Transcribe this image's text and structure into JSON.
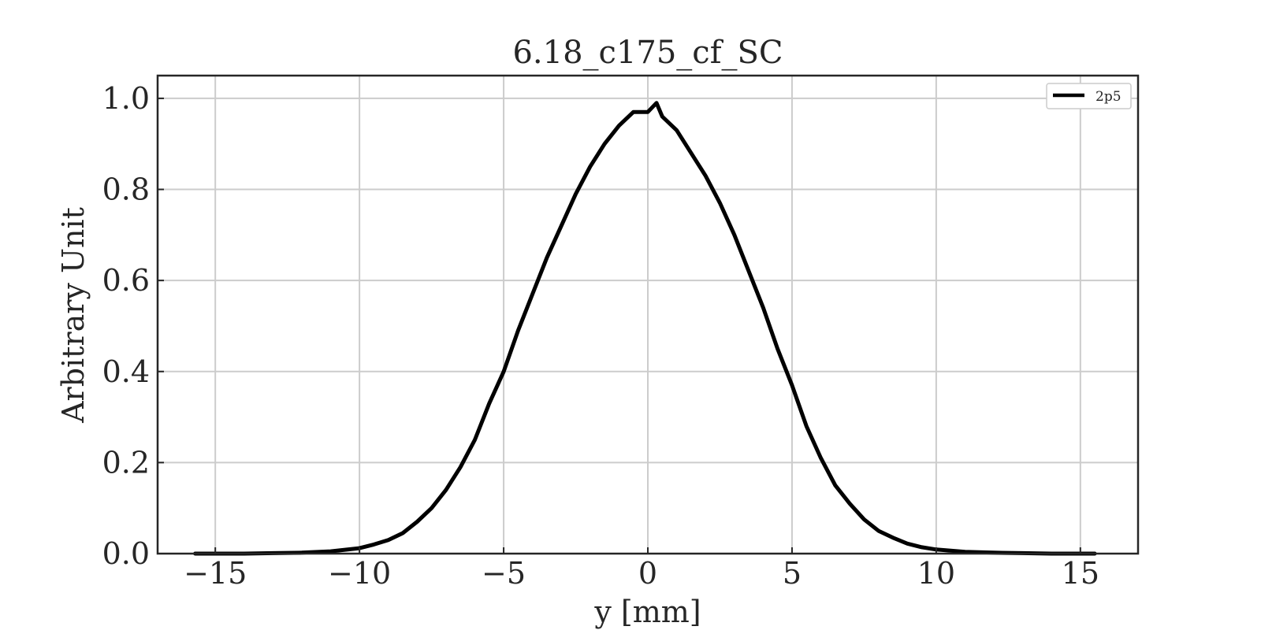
{
  "chart_data": {
    "type": "line",
    "title": "6.18_c175_cf_SC",
    "xlabel": "y [mm]",
    "ylabel": "Arbitrary Unit",
    "xlim": [
      -17,
      17
    ],
    "ylim": [
      0,
      1.05
    ],
    "xticks": [
      -15,
      -10,
      -5,
      0,
      5,
      10,
      15
    ],
    "xtick_labels": [
      "−15",
      "−10",
      "−5",
      "0",
      "5",
      "10",
      "15"
    ],
    "yticks": [
      0.0,
      0.2,
      0.4,
      0.6,
      0.8,
      1.0
    ],
    "ytick_labels": [
      "0.0",
      "0.2",
      "0.4",
      "0.6",
      "0.8",
      "1.0"
    ],
    "grid": true,
    "legend_position": "top-right",
    "series": [
      {
        "name": "2p5",
        "color": "#000000",
        "x": [
          -15.7,
          -15,
          -14,
          -13,
          -12,
          -11,
          -10,
          -9.5,
          -9,
          -8.5,
          -8,
          -7.5,
          -7,
          -6.5,
          -6,
          -5.5,
          -5,
          -4.5,
          -4,
          -3.5,
          -3,
          -2.5,
          -2,
          -1.5,
          -1,
          -0.5,
          0,
          0.3,
          0.5,
          1,
          1.5,
          2,
          2.5,
          3,
          3.5,
          4,
          4.5,
          5,
          5.5,
          6,
          6.5,
          7,
          7.5,
          8,
          8.5,
          9,
          9.5,
          10,
          11,
          12,
          13,
          14,
          15,
          15.5
        ],
        "y": [
          0.0,
          0.0,
          0.0,
          0.001,
          0.002,
          0.005,
          0.012,
          0.02,
          0.03,
          0.045,
          0.07,
          0.1,
          0.14,
          0.19,
          0.25,
          0.33,
          0.4,
          0.49,
          0.57,
          0.65,
          0.72,
          0.79,
          0.85,
          0.9,
          0.94,
          0.97,
          0.97,
          0.99,
          0.96,
          0.93,
          0.88,
          0.83,
          0.77,
          0.7,
          0.62,
          0.54,
          0.45,
          0.37,
          0.28,
          0.21,
          0.15,
          0.11,
          0.075,
          0.05,
          0.035,
          0.022,
          0.014,
          0.009,
          0.004,
          0.002,
          0.001,
          0.0,
          0.0,
          0.0
        ]
      }
    ]
  }
}
